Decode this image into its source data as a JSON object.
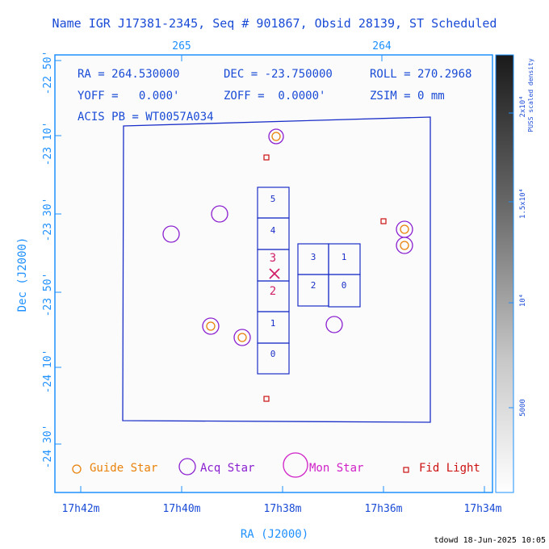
{
  "title": "Name IGR J17381-2345, Seq # 901867, Obsid 28139, ST Scheduled",
  "info": {
    "ra": "RA = 264.530000",
    "dec": "DEC = -23.750000",
    "roll": "ROLL = 270.2968",
    "yoff": "YOFF =   0.000'",
    "zoff": "ZOFF =  0.0000'",
    "zsim": "ZSIM = 0 mm",
    "acis": "ACIS PB = WT0057A034"
  },
  "axes": {
    "xlabel": "RA (J2000)",
    "ylabel": "Dec (J2000)",
    "x_ticks": [
      "17h42m",
      "17h40m",
      "17h38m",
      "17h36m",
      "17h34m"
    ],
    "top_ticks": [
      "265",
      "264"
    ],
    "y_ticks": [
      "-22 50'",
      "-23 10'",
      "-23 30'",
      "-23 50'",
      "-24 10'",
      "-24 30'"
    ]
  },
  "colorbar": {
    "label_line1": "2x10",
    "label_line2": "PUSS scaled density",
    "ticks": [
      "2x10⁴",
      "1.5x10⁴",
      "10⁴",
      "5000"
    ]
  },
  "chips_left": [
    "5",
    "4",
    "3",
    "2",
    "1",
    "0"
  ],
  "chips_right": [
    "3",
    "1",
    "2",
    "0"
  ],
  "legend": {
    "guide": "Guide Star",
    "acq": "Acq Star",
    "mon": "Mon Star",
    "fid": "Fid Light"
  },
  "footer": "tdowd 18-Jun-2025 10:05",
  "colors": {
    "guide": "#e8820a",
    "acq": "#8a1fd0",
    "mon": "#d020c8",
    "fid": "#cc1111",
    "frame": "#1e90ff",
    "text": "#1a4bd6"
  }
}
